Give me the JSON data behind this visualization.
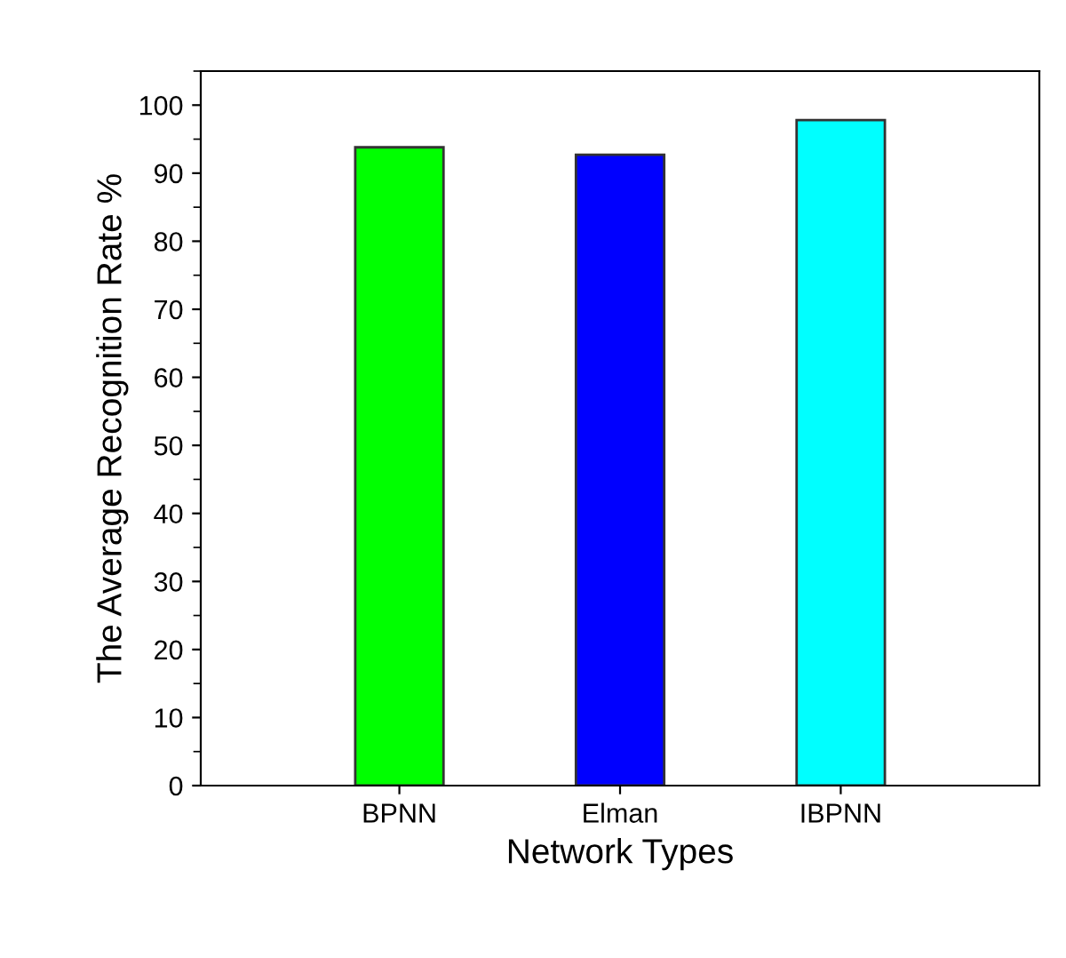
{
  "chart_data": {
    "type": "bar",
    "xlabel": "Network Types",
    "ylabel": "The Average Recognition Rate %",
    "categories": [
      "BPNN",
      "Elman",
      "IBPNN"
    ],
    "values": [
      93.8,
      92.7,
      97.8
    ],
    "colors": [
      "#00ff00",
      "#0000ff",
      "#00ffff"
    ],
    "ylim": [
      0,
      105
    ],
    "yticks": [
      0,
      10,
      20,
      30,
      40,
      50,
      60,
      70,
      80,
      90,
      100
    ],
    "grid": false,
    "legend": false
  }
}
